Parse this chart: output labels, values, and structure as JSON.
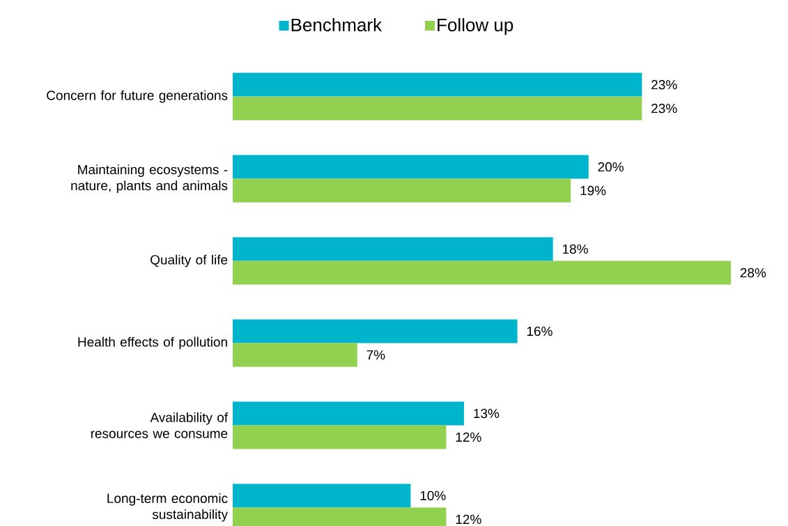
{
  "chart_data": {
    "type": "bar",
    "orientation": "horizontal",
    "categories": [
      "Concern for future generations",
      "Maintaining ecosystems - nature, plants and animals",
      "Quality of life",
      "Health effects of pollution",
      "Availability of resources we consume",
      "Long-term economic sustainability"
    ],
    "series": [
      {
        "name": "Benchmark",
        "color": "#00b4cc",
        "values": [
          23,
          20,
          18,
          16,
          13,
          10
        ],
        "value_labels": [
          "23%",
          "20%",
          "18%",
          "16%",
          "13%",
          "10%"
        ]
      },
      {
        "name": "Follow up",
        "color": "#92d050",
        "values": [
          23,
          19,
          28,
          7,
          12,
          12
        ],
        "value_labels": [
          "23%",
          "19%",
          "28%",
          "7%",
          "12%",
          "12%"
        ]
      }
    ],
    "legend": "top",
    "tick_labels": "y"
  }
}
